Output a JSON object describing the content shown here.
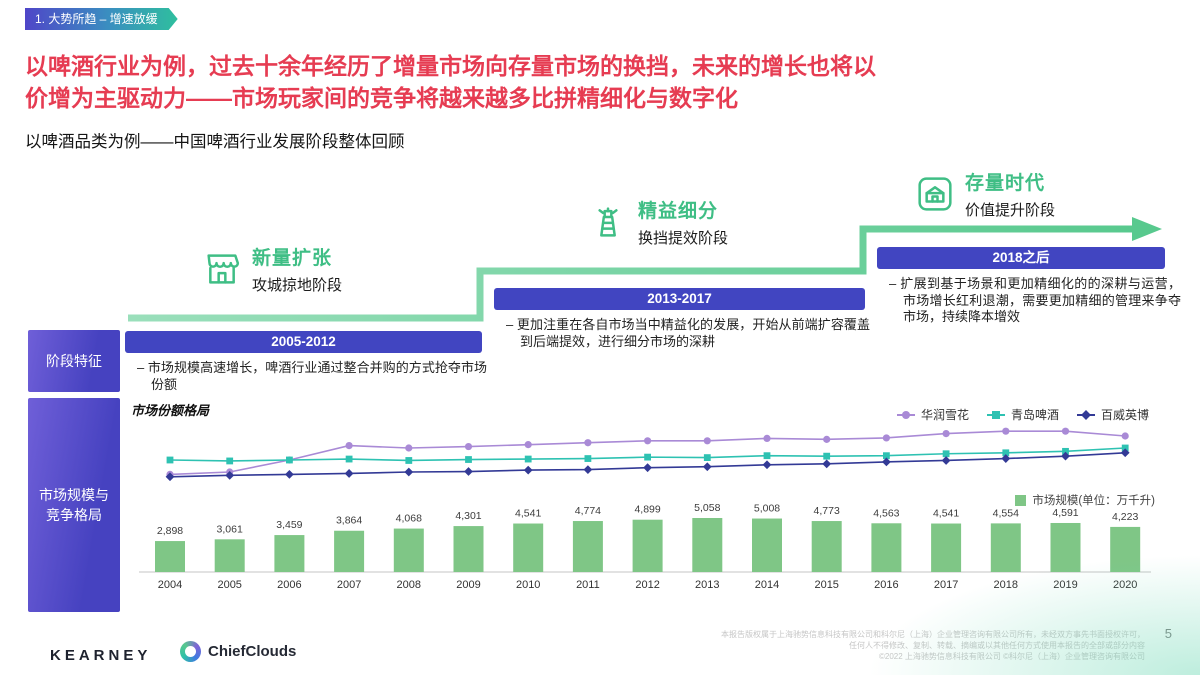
{
  "header": {
    "tag": "1. 大势所趋 – 增速放缓",
    "title_line1": "以啤酒行业为例，过去十余年经历了增量市场向存量市场的换挡，未来的增长也将以",
    "title_line2": "价增为主驱动力——市场玩家间的竞争将越来越多比拼精细化与数字化",
    "subtitle": "以啤酒品类为例——中国啤酒行业发展阶段整体回顾"
  },
  "row_labels": {
    "stage_features": "阶段特征",
    "market_scale": "市场规模与竞争格局"
  },
  "stages": [
    {
      "icon": "storefront-icon",
      "name": "新量扩张",
      "phase": "攻城掠地阶段",
      "period": "2005-2012",
      "bullet": "–  市场规模高速增长，啤酒行业通过整合并购的方式抢夺市场份额"
    },
    {
      "icon": "lighthouse-icon",
      "name": "精益细分",
      "phase": "换挡提效阶段",
      "period": "2013-2017",
      "bullet": "–  更加注重在各自市场当中精益化的发展，开始从前端扩容覆盖到后端提效，进行细分市场的深耕"
    },
    {
      "icon": "warehouse-icon",
      "name": "存量时代",
      "phase": "价值提升阶段",
      "period": "2018之后",
      "bullet": "–  扩展到基于场景和更加精细化的的深耕与运营，市场增长红利退潮，需要更加精细的管理来争夺市场，持续降本增效"
    }
  ],
  "chart_data": [
    {
      "type": "line",
      "title": "市场份额格局",
      "x": [
        2004,
        2005,
        2006,
        2007,
        2008,
        2009,
        2010,
        2011,
        2012,
        2013,
        2014,
        2015,
        2016,
        2017,
        2018,
        2019,
        2020
      ],
      "legend_position": "top-right",
      "series": [
        {
          "name": "华润雪花",
          "marker": "circle",
          "color": "#a98ad6",
          "values": [
            12,
            12.5,
            15,
            18,
            17.5,
            17.8,
            18.2,
            18.6,
            19,
            19,
            19.5,
            19.3,
            19.6,
            20.5,
            21,
            21,
            20
          ]
        },
        {
          "name": "青岛啤酒",
          "marker": "square",
          "color": "#2ec2b2",
          "values": [
            15,
            14.8,
            15,
            15.2,
            14.9,
            15.1,
            15.2,
            15.3,
            15.6,
            15.5,
            15.9,
            15.8,
            15.9,
            16.3,
            16.5,
            16.8,
            17.5
          ]
        },
        {
          "name": "百威英博",
          "marker": "diamond",
          "color": "#333a96",
          "values": [
            11.5,
            11.8,
            12,
            12.2,
            12.5,
            12.6,
            12.9,
            13,
            13.4,
            13.6,
            14,
            14.2,
            14.6,
            14.9,
            15.3,
            15.8,
            16.5
          ]
        }
      ]
    },
    {
      "type": "bar",
      "name": "市场规模(单位：万千升)",
      "color": "#7fc686",
      "categories": [
        "2004",
        "2005",
        "2006",
        "2007",
        "2008",
        "2009",
        "2010",
        "2011",
        "2012",
        "2013",
        "2014",
        "2015",
        "2016",
        "2017",
        "2018",
        "2019",
        "2020"
      ],
      "values": [
        2898,
        3061,
        3459,
        3864,
        4068,
        4301,
        4541,
        4774,
        4899,
        5058,
        5008,
        4773,
        4563,
        4541,
        4554,
        4591,
        4223
      ]
    }
  ],
  "footer": {
    "kearney": "KEARNEY",
    "chiefclouds": "ChiefClouds",
    "disclaimer_line1": "本报告版权属于上海驰势信息科技有限公司和科尔尼（上海）企业管理咨询有限公司所有，未经双方事先书面授权许可，",
    "disclaimer_line2": "任何人不得修改、复制、转载、摘编或以其他任何方式使用本报告的全部或部分内容",
    "disclaimer_line3": "©2022 上海驰势信息科技有限公司 ©科尔尼（上海）企业管理咨询有限公司",
    "page_number": "5"
  },
  "colors": {
    "title_red": "#e63c52",
    "indigo": "#4145c1",
    "stage_green": "#3fbe85",
    "arrow_green": "#58c98e",
    "bar_green": "#7fc686"
  }
}
